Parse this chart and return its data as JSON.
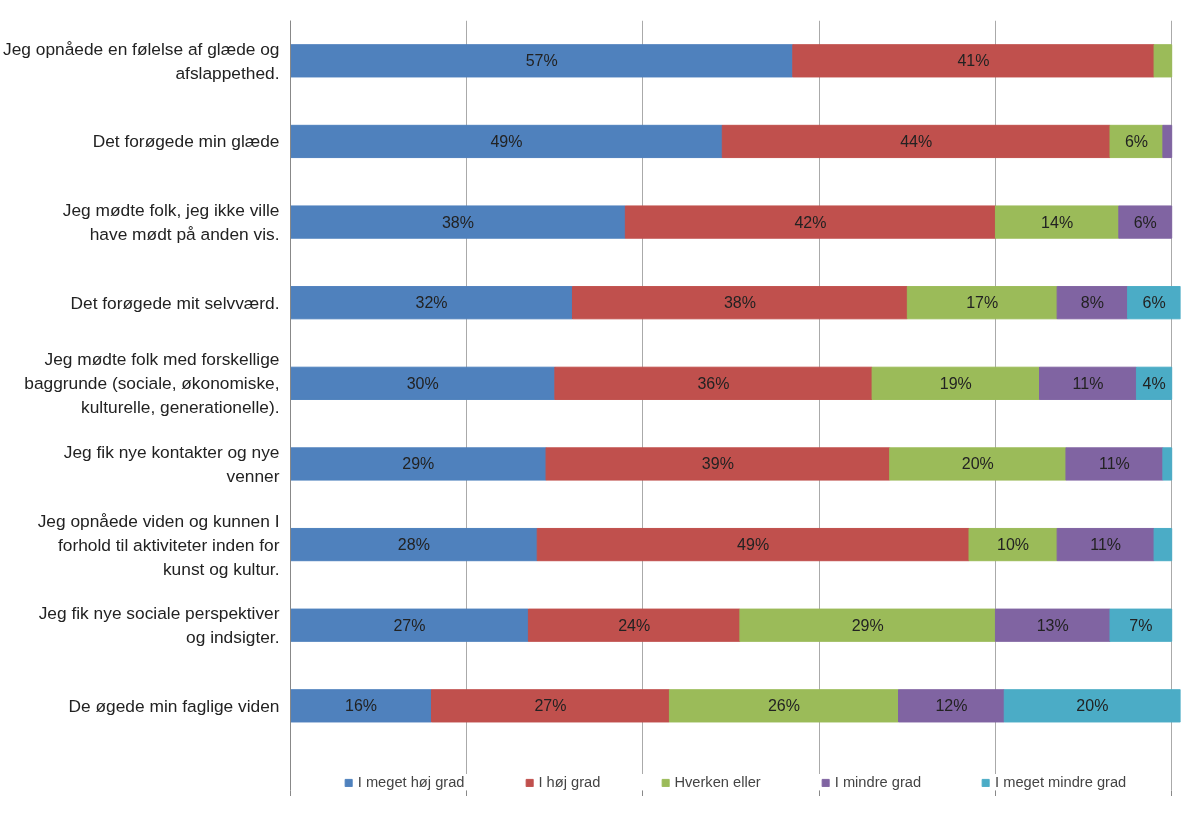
{
  "chart_data": {
    "type": "bar",
    "orientation": "horizontal",
    "stacked": true,
    "categories": [
      "Jeg opnåede en følelse af glæde og afslappethed.",
      "Det forøgede min glæde",
      "Jeg mødte folk, jeg ikke ville have mødt på anden vis.",
      "Det forøgede mit selvværd.",
      "Jeg mødte folk med forskellige baggrunde (sociale, økonomiske, kulturelle, generationelle).",
      "Jeg fik nye kontakter og nye venner",
      "Jeg opnåede viden og kunnen I forhold til aktiviteter inden for kunst og kultur.",
      "Jeg fik nye sociale perspektiver og indsigter.",
      "De øgede min faglige viden"
    ],
    "series": [
      {
        "name": "I meget høj grad",
        "color": "#4f81bd",
        "values": [
          57,
          49,
          38,
          32,
          30,
          29,
          28,
          27,
          16
        ],
        "value_labels": [
          "57%",
          "49%",
          "38%",
          "32%",
          "30%",
          "29%",
          "28%",
          "27%",
          "16%"
        ]
      },
      {
        "name": "I høj grad",
        "color": "#c0504d",
        "values": [
          41,
          44,
          42,
          38,
          36,
          39,
          49,
          24,
          27
        ],
        "value_labels": [
          "41%",
          "44%",
          "42%",
          "38%",
          "36%",
          "39%",
          "49%",
          "24%",
          "27%"
        ]
      },
      {
        "name": "Hverken eller",
        "color": "#9bbb59",
        "values": [
          2,
          6,
          14,
          17,
          19,
          20,
          10,
          29,
          26
        ],
        "value_labels": [
          null,
          "6%",
          "14%",
          "17%",
          "19%",
          "20%",
          "10%",
          "29%",
          "26%"
        ]
      },
      {
        "name": "I mindre grad",
        "color": "#8064a2",
        "values": [
          null,
          1,
          6,
          8,
          11,
          11,
          11,
          13,
          12
        ],
        "value_labels": [
          null,
          null,
          "6%",
          "8%",
          "11%",
          "11%",
          "11%",
          "13%",
          "12%"
        ]
      },
      {
        "name": "I meget mindre grad",
        "color": "#4bacc6",
        "values": [
          null,
          null,
          null,
          6,
          4,
          1,
          2,
          7,
          20
        ],
        "value_labels": [
          null,
          null,
          null,
          "6%",
          "4%",
          null,
          null,
          "7%",
          "20%"
        ]
      }
    ],
    "xlim": [
      0,
      101
    ],
    "xticks": [
      {
        "value": 0,
        "label": null
      },
      {
        "value": 20,
        "label": null
      },
      {
        "value": 40,
        "label": null
      },
      {
        "value": 60,
        "label": null
      },
      {
        "value": 80,
        "label": null
      },
      {
        "value": 100,
        "label": null
      }
    ],
    "grid": "x",
    "legend": "bottom"
  }
}
